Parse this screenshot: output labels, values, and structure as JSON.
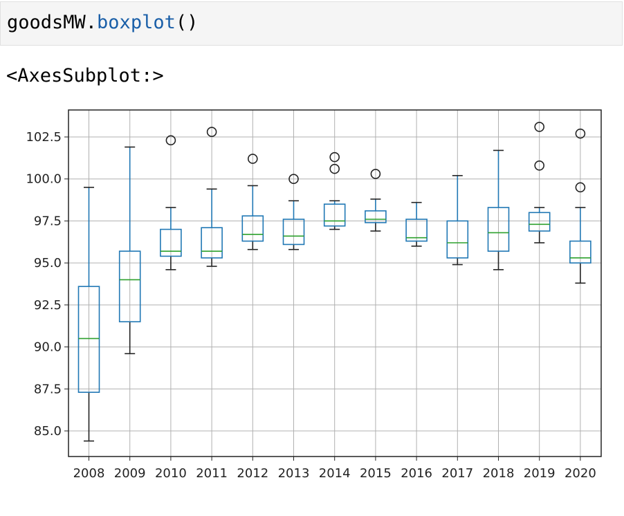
{
  "code_cell": {
    "object": "goodsMW.",
    "method": "boxplot",
    "parens": "()"
  },
  "output": {
    "repr": "<AxesSubplot:>"
  },
  "colors": {
    "box": "#1f77b4",
    "median": "#2ca02c",
    "grid": "#b0b0b0",
    "cell_background": "#f5f5f5"
  },
  "chart_data": {
    "type": "boxplot",
    "title": "",
    "xlabel": "",
    "ylabel": "",
    "ylim": [
      83.5,
      104.0
    ],
    "yticks": [
      85.0,
      87.5,
      90.0,
      92.5,
      95.0,
      97.5,
      100.0,
      102.5
    ],
    "ytick_labels": [
      "85.0",
      "87.5",
      "90.0",
      "92.5",
      "95.0",
      "97.5",
      "100.0",
      "102.5"
    ],
    "grid": true,
    "categories": [
      "2008",
      "2009",
      "2010",
      "2011",
      "2012",
      "2013",
      "2014",
      "2015",
      "2016",
      "2017",
      "2018",
      "2019",
      "2020"
    ],
    "boxes": [
      {
        "category": "2008",
        "whisker_low": 84.4,
        "q1": 87.3,
        "median": 90.5,
        "q3": 93.6,
        "whisker_high": 99.5,
        "outliers": []
      },
      {
        "category": "2009",
        "whisker_low": 89.6,
        "q1": 91.5,
        "median": 94.0,
        "q3": 95.7,
        "whisker_high": 101.9,
        "outliers": []
      },
      {
        "category": "2010",
        "whisker_low": 94.6,
        "q1": 95.4,
        "median": 95.7,
        "q3": 97.0,
        "whisker_high": 98.3,
        "outliers": [
          102.3
        ]
      },
      {
        "category": "2011",
        "whisker_low": 94.8,
        "q1": 95.3,
        "median": 95.7,
        "q3": 97.1,
        "whisker_high": 99.4,
        "outliers": [
          102.8
        ]
      },
      {
        "category": "2012",
        "whisker_low": 95.8,
        "q1": 96.3,
        "median": 96.7,
        "q3": 97.8,
        "whisker_high": 99.6,
        "outliers": [
          101.2
        ]
      },
      {
        "category": "2013",
        "whisker_low": 95.8,
        "q1": 96.1,
        "median": 96.6,
        "q3": 97.6,
        "whisker_high": 98.7,
        "outliers": [
          100.0
        ]
      },
      {
        "category": "2014",
        "whisker_low": 97.0,
        "q1": 97.2,
        "median": 97.5,
        "q3": 98.5,
        "whisker_high": 98.7,
        "outliers": [
          100.6,
          101.3
        ]
      },
      {
        "category": "2015",
        "whisker_low": 96.9,
        "q1": 97.4,
        "median": 97.6,
        "q3": 98.1,
        "whisker_high": 98.8,
        "outliers": [
          100.3
        ]
      },
      {
        "category": "2016",
        "whisker_low": 96.0,
        "q1": 96.3,
        "median": 96.5,
        "q3": 97.6,
        "whisker_high": 98.6,
        "outliers": []
      },
      {
        "category": "2017",
        "whisker_low": 94.9,
        "q1": 95.3,
        "median": 96.2,
        "q3": 97.5,
        "whisker_high": 100.2,
        "outliers": []
      },
      {
        "category": "2018",
        "whisker_low": 94.6,
        "q1": 95.7,
        "median": 96.8,
        "q3": 98.3,
        "whisker_high": 101.7,
        "outliers": []
      },
      {
        "category": "2019",
        "whisker_low": 96.2,
        "q1": 96.9,
        "median": 97.3,
        "q3": 98.0,
        "whisker_high": 98.3,
        "outliers": [
          100.8,
          103.1
        ]
      },
      {
        "category": "2020",
        "whisker_low": 93.8,
        "q1": 95.0,
        "median": 95.3,
        "q3": 96.3,
        "whisker_high": 98.3,
        "outliers": [
          99.5,
          102.7
        ]
      }
    ]
  }
}
